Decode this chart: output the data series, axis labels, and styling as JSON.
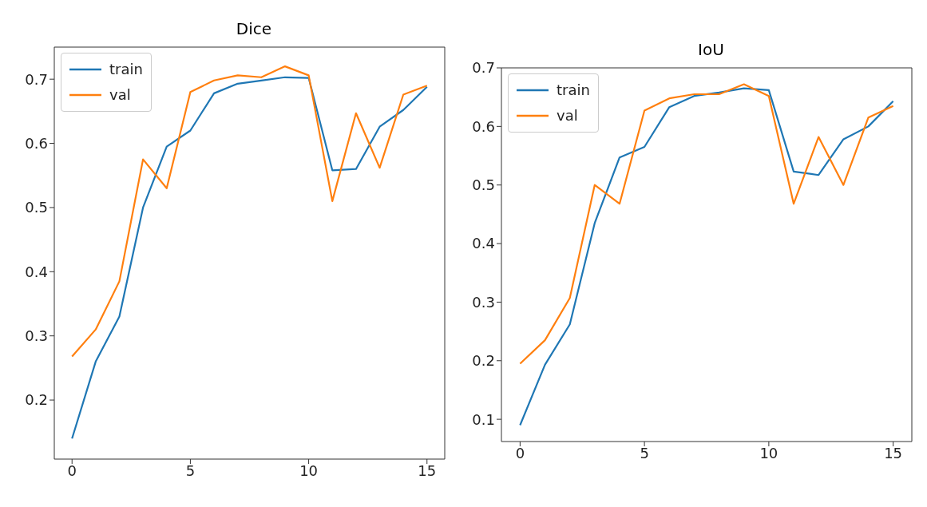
{
  "chart_data": [
    {
      "type": "line",
      "title": "Dice",
      "x": [
        0,
        1,
        2,
        3,
        4,
        5,
        6,
        7,
        8,
        9,
        10,
        11,
        12,
        13,
        14,
        15
      ],
      "xlim": [
        -0.75,
        15.75
      ],
      "xticks": [
        0,
        5,
        10,
        15
      ],
      "ylim": [
        0.108,
        0.75
      ],
      "yticks": [
        0.2,
        0.3,
        0.4,
        0.5,
        0.6,
        0.7
      ],
      "legend": "top left",
      "grid": false,
      "series": [
        {
          "name": "train",
          "color": "#1f77b4",
          "values": [
            0.14,
            0.26,
            0.33,
            0.5,
            0.595,
            0.62,
            0.678,
            0.693,
            0.698,
            0.703,
            0.702,
            0.558,
            0.56,
            0.626,
            0.652,
            0.688
          ]
        },
        {
          "name": "val",
          "color": "#ff7f0e",
          "values": [
            0.268,
            0.31,
            0.385,
            0.575,
            0.53,
            0.68,
            0.698,
            0.706,
            0.703,
            0.72,
            0.706,
            0.51,
            0.647,
            0.562,
            0.676,
            0.69
          ]
        }
      ]
    },
    {
      "type": "line",
      "title": "IoU",
      "x": [
        0,
        1,
        2,
        3,
        4,
        5,
        6,
        7,
        8,
        9,
        10,
        11,
        12,
        13,
        14,
        15
      ],
      "xlim": [
        -0.75,
        15.75
      ],
      "xticks": [
        0,
        5,
        10,
        15
      ],
      "ylim": [
        0.062,
        0.7
      ],
      "yticks": [
        0.1,
        0.2,
        0.3,
        0.4,
        0.5,
        0.6,
        0.7
      ],
      "legend": "top left",
      "grid": false,
      "series": [
        {
          "name": "train",
          "color": "#1f77b4",
          "values": [
            0.09,
            0.193,
            0.262,
            0.435,
            0.547,
            0.565,
            0.633,
            0.652,
            0.658,
            0.665,
            0.662,
            0.523,
            0.517,
            0.578,
            0.6,
            0.643
          ]
        },
        {
          "name": "val",
          "color": "#ff7f0e",
          "values": [
            0.195,
            0.235,
            0.307,
            0.5,
            0.468,
            0.627,
            0.648,
            0.655,
            0.655,
            0.672,
            0.652,
            0.468,
            0.582,
            0.5,
            0.615,
            0.635
          ]
        }
      ]
    }
  ]
}
